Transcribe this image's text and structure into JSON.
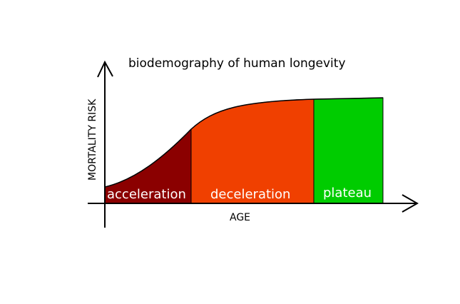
{
  "diagram": {
    "title": "biodemography of human longevity",
    "y_axis_label": "MORTALITY RISK",
    "x_axis_label": "AGE",
    "regions": [
      {
        "label": "acceleration",
        "color": "#8b0000"
      },
      {
        "label": "deceleration",
        "color": "#f04000"
      },
      {
        "label": "plateau",
        "color": "#00cc00"
      }
    ]
  }
}
